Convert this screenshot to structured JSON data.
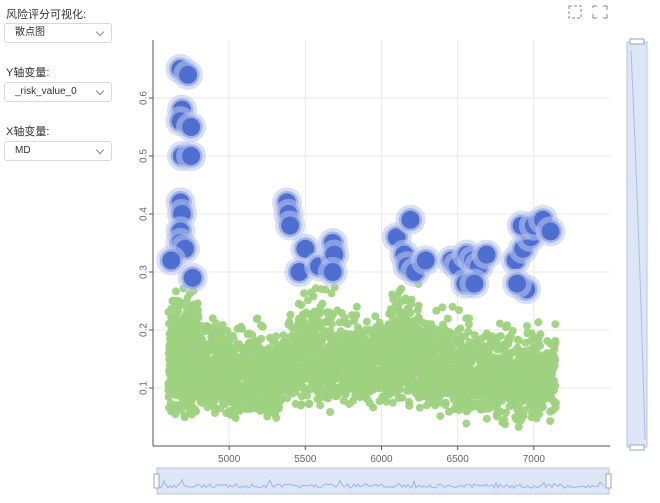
{
  "controls": {
    "viz_label": "风险评分可视化:",
    "viz_value": "散点图",
    "y_label": "Y轴变量:",
    "y_value": "_risk_value_0",
    "x_label": "X轴变量:",
    "x_value": "MD"
  },
  "toolbox": {
    "icons": [
      "area-zoom-icon",
      "zoom-reset-icon"
    ]
  },
  "chart_data": {
    "type": "scatter",
    "xlim": [
      4500,
      7500
    ],
    "ylim": [
      0,
      0.7
    ],
    "x_ticks": [
      5000,
      5500,
      6000,
      6500,
      7000
    ],
    "y_ticks": [
      0.1,
      0.2,
      0.3,
      0.4,
      0.5,
      0.6
    ],
    "grid": true,
    "series": [
      {
        "color": "#9fd27f",
        "clusters": [
          {
            "x": [
              4600,
              4800
            ],
            "y": [
              0.04,
              0.28
            ],
            "n": 450
          },
          {
            "x": [
              4800,
              5000
            ],
            "y": [
              0.04,
              0.22
            ],
            "n": 300
          },
          {
            "x": [
              5000,
              5350
            ],
            "y": [
              0.03,
              0.22
            ],
            "n": 420
          },
          {
            "x": [
              5350,
              5450
            ],
            "y": [
              0.06,
              0.24
            ],
            "n": 100
          },
          {
            "x": [
              5450,
              5700
            ],
            "y": [
              0.05,
              0.28
            ],
            "n": 320
          },
          {
            "x": [
              5700,
              6100
            ],
            "y": [
              0.06,
              0.24
            ],
            "n": 420
          },
          {
            "x": [
              6050,
              6250
            ],
            "y": [
              0.06,
              0.29
            ],
            "n": 300
          },
          {
            "x": [
              6250,
              6550
            ],
            "y": [
              0.04,
              0.24
            ],
            "n": 400
          },
          {
            "x": [
              6550,
              7050
            ],
            "y": [
              0.03,
              0.22
            ],
            "n": 550
          },
          {
            "x": [
              7050,
              7150
            ],
            "y": [
              0.04,
              0.21
            ],
            "n": 80
          }
        ]
      },
      {
        "color": "#4e6fd0",
        "points": [
          [
            4680,
            0.65
          ],
          [
            4730,
            0.64
          ],
          [
            4690,
            0.58
          ],
          [
            4680,
            0.56
          ],
          [
            4750,
            0.55
          ],
          [
            4690,
            0.5
          ],
          [
            4750,
            0.5
          ],
          [
            4680,
            0.42
          ],
          [
            4690,
            0.4
          ],
          [
            4680,
            0.37
          ],
          [
            4680,
            0.35
          ],
          [
            4710,
            0.34
          ],
          [
            4620,
            0.32
          ],
          [
            4760,
            0.29
          ],
          [
            5380,
            0.42
          ],
          [
            5390,
            0.4
          ],
          [
            5400,
            0.38
          ],
          [
            5500,
            0.34
          ],
          [
            5460,
            0.3
          ],
          [
            5590,
            0.31
          ],
          [
            5680,
            0.35
          ],
          [
            5690,
            0.33
          ],
          [
            5680,
            0.3
          ],
          [
            6100,
            0.36
          ],
          [
            6190,
            0.39
          ],
          [
            6150,
            0.33
          ],
          [
            6170,
            0.31
          ],
          [
            6220,
            0.3
          ],
          [
            6290,
            0.32
          ],
          [
            6460,
            0.32
          ],
          [
            6500,
            0.31
          ],
          [
            6560,
            0.33
          ],
          [
            6600,
            0.32
          ],
          [
            6640,
            0.31
          ],
          [
            6690,
            0.33
          ],
          [
            6550,
            0.28
          ],
          [
            6610,
            0.28
          ],
          [
            6880,
            0.32
          ],
          [
            6930,
            0.34
          ],
          [
            6980,
            0.36
          ],
          [
            6920,
            0.38
          ],
          [
            7000,
            0.38
          ],
          [
            7060,
            0.39
          ],
          [
            7110,
            0.37
          ],
          [
            6950,
            0.27
          ],
          [
            6890,
            0.28
          ]
        ]
      }
    ]
  }
}
